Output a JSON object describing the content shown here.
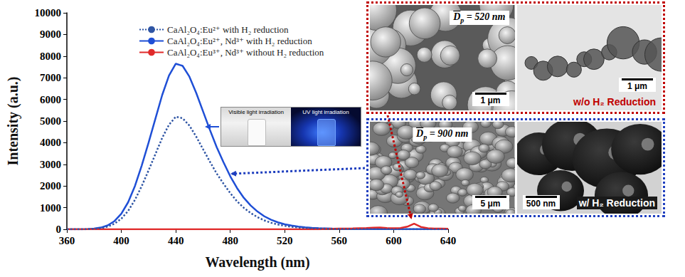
{
  "chart_data": {
    "type": "line",
    "x_label": "Wavelength (nm)",
    "y_label": "Intensity (a.u.)",
    "x": [
      360,
      365,
      370,
      375,
      380,
      385,
      390,
      395,
      400,
      405,
      410,
      415,
      420,
      425,
      430,
      435,
      440,
      445,
      450,
      455,
      460,
      465,
      470,
      475,
      480,
      485,
      490,
      495,
      500,
      505,
      510,
      515,
      520,
      525,
      530,
      535,
      540,
      545,
      550,
      555,
      560,
      565,
      570,
      575,
      580,
      585,
      590,
      595,
      600,
      605,
      610,
      615,
      620,
      625,
      630,
      635,
      640
    ],
    "xlim": [
      360,
      640
    ],
    "xticks": [
      360,
      400,
      440,
      480,
      520,
      560,
      600,
      640
    ],
    "ylim": [
      0,
      10000
    ],
    "yticks": [
      0,
      1000,
      2000,
      3000,
      4000,
      5000,
      6000,
      7000,
      8000,
      9000,
      10000
    ],
    "grid": false,
    "legend": "top-left",
    "series": [
      {
        "name": "CaAl₂O₄:Eu²⁺ with H₂ reduction",
        "color": "#2f55a4",
        "line_style": "dotted",
        "values": [
          0,
          0,
          0,
          5,
          20,
          55,
          120,
          260,
          490,
          850,
          1360,
          2000,
          2720,
          3470,
          4220,
          4830,
          5200,
          5130,
          4790,
          4280,
          3700,
          3130,
          2580,
          2110,
          1670,
          1290,
          990,
          750,
          560,
          410,
          300,
          220,
          160,
          115,
          80,
          60,
          45,
          35,
          27,
          20,
          17,
          14,
          10,
          8,
          7,
          7,
          5,
          5,
          3,
          3,
          3,
          3,
          3,
          3,
          3,
          3,
          3
        ]
      },
      {
        "name": "CaAl₂O₄:Eu²⁺, Nd³⁺ with H₂ reduction",
        "color": "#1f4fd6",
        "line_style": "solid",
        "values": [
          0,
          0,
          0,
          10,
          30,
          80,
          180,
          380,
          720,
          1250,
          2000,
          2950,
          4000,
          5100,
          6200,
          7100,
          7650,
          7550,
          7050,
          6300,
          5450,
          4600,
          3800,
          3100,
          2450,
          1900,
          1450,
          1100,
          820,
          600,
          440,
          320,
          230,
          170,
          120,
          90,
          65,
          50,
          40,
          30,
          25,
          20,
          15,
          12,
          10,
          10,
          8,
          8,
          5,
          5,
          5,
          5,
          5,
          5,
          5,
          5,
          5
        ]
      },
      {
        "name": "CaAl₂O₄:Eu³⁺, Nd³⁺ without H₂ reduction",
        "color": "#e02a2a",
        "line_style": "solid",
        "values": [
          0,
          0,
          0,
          0,
          0,
          0,
          0,
          0,
          0,
          0,
          0,
          0,
          0,
          0,
          0,
          0,
          0,
          0,
          0,
          0,
          0,
          0,
          0,
          0,
          0,
          0,
          0,
          0,
          0,
          0,
          0,
          0,
          0,
          0,
          0,
          0,
          0,
          0,
          20,
          25,
          30,
          35,
          40,
          50,
          55,
          70,
          80,
          60,
          50,
          60,
          120,
          260,
          110,
          50,
          35,
          30,
          25
        ]
      }
    ]
  },
  "photo_inset": {
    "labels": [
      "Visible light irradiation",
      "UV light irradiation"
    ]
  },
  "micrographs": [
    {
      "color": "#c00000",
      "sem": {
        "diameter": {
          "symbol": "D",
          "subscript": "p",
          "text": " = 520 nm"
        },
        "scale_bar": "1 μm"
      },
      "tem": {
        "scale_bar": "1 μm",
        "condition": "w/o H₂ Reduction"
      }
    },
    {
      "color": "#1f3fbf",
      "sem": {
        "diameter": {
          "symbol": "D",
          "subscript": "p",
          "text": " = 900 nm"
        },
        "scale_bar": "5 μm"
      },
      "tem": {
        "scale_bar": "500 nm",
        "condition": "w/ H₂ Reduction"
      }
    }
  ]
}
